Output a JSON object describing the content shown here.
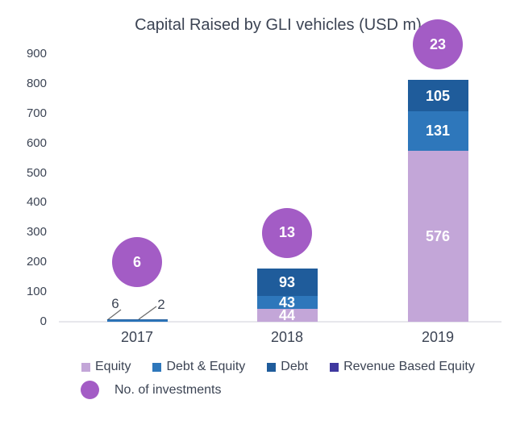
{
  "chart_data": {
    "type": "bar",
    "stacked": true,
    "title": "Capital Raised by GLI vehicles (USD m)",
    "categories": [
      "2017",
      "2018",
      "2019"
    ],
    "series": [
      {
        "name": "Equity",
        "color": "#c3a6d8",
        "values": [
          0,
          44,
          576
        ]
      },
      {
        "name": "Debt & Equity",
        "color": "#2e77bb",
        "values": [
          6,
          43,
          131
        ]
      },
      {
        "name": "Debt",
        "color": "#1f5c9b",
        "values": [
          2,
          93,
          105
        ]
      },
      {
        "name": "Revenue Based Equity",
        "color": "#3f389f",
        "values": [
          0,
          0,
          0
        ]
      }
    ],
    "bubbles": {
      "name": "No. of investments",
      "color": "#a35cc5",
      "values": [
        6,
        13,
        23
      ]
    },
    "totals": [
      8,
      180,
      812
    ],
    "ylabel": "",
    "xlabel": "",
    "ylim": [
      0,
      900
    ],
    "ytick_interval": 100,
    "yticks": [
      0,
      100,
      200,
      300,
      400,
      500,
      600,
      700,
      800,
      900
    ],
    "grid": false,
    "legend_position": "bottom",
    "text_color": "#3c4454",
    "segment_label_color": "#ffffff"
  }
}
